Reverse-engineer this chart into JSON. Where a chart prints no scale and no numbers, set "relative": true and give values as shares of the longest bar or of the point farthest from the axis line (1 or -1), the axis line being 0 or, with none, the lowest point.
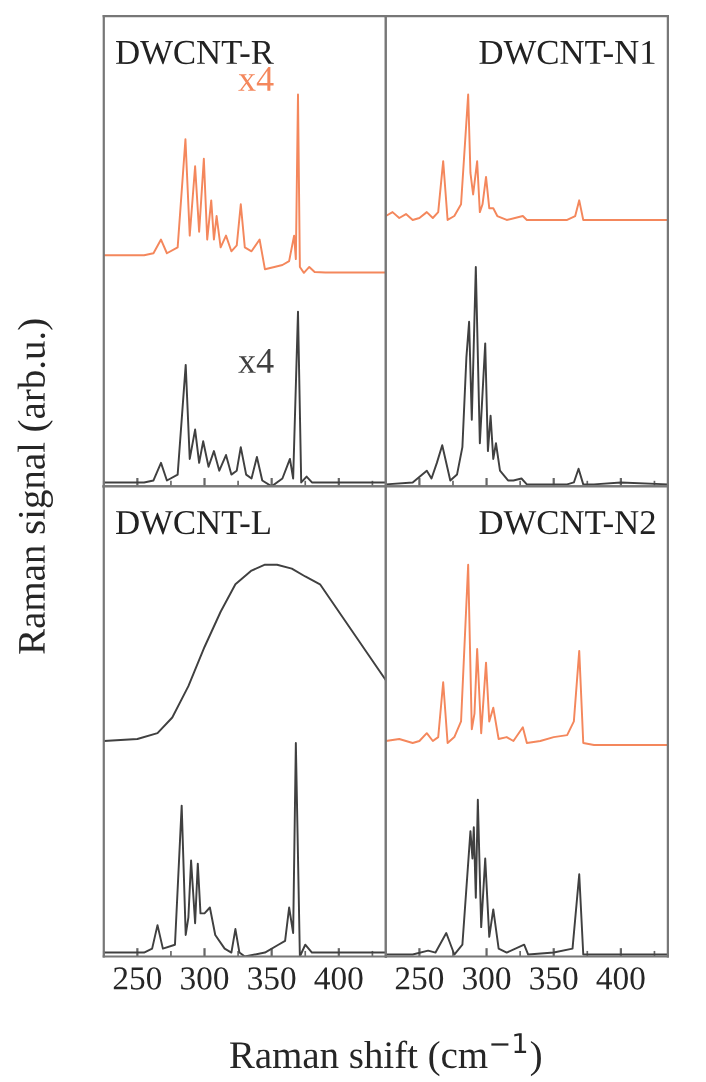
{
  "chart_data": [
    {
      "type": "line",
      "title": "DWCNT-R",
      "ylabel": "Raman signal (arb.u.)",
      "relative": true,
      "xlim": [
        225,
        435
      ],
      "xticks": [
        250,
        300,
        350,
        400
      ],
      "tick_labels": false,
      "grid": false,
      "legend": false,
      "annotations": [
        "x4",
        "x4"
      ],
      "series": [
        {
          "color": "#f4875c",
          "x": [
            225,
            255,
            262,
            267.6,
            272,
            280,
            285.8,
            289,
            293,
            296,
            299.5,
            302,
            305,
            307,
            309,
            312,
            316,
            320,
            324,
            327,
            330,
            335,
            341,
            342,
            345,
            352,
            358,
            363,
            366.7,
            368,
            369.6,
            371,
            374,
            378,
            382,
            390,
            410,
            435
          ],
          "values": [
            0.59,
            0.59,
            0.595,
            0.63,
            0.595,
            0.61,
            0.886,
            0.64,
            0.817,
            0.65,
            0.836,
            0.63,
            0.73,
            0.63,
            0.69,
            0.61,
            0.64,
            0.6,
            0.615,
            0.72,
            0.61,
            0.6,
            0.63,
            null,
            0.554,
            0.56,
            0.565,
            0.575,
            0.64,
            0.58,
            1.0,
            0.56,
            0.545,
            0.56,
            0.547,
            0.546,
            0.546,
            0.546
          ]
        },
        {
          "color": "#404040",
          "x": [
            225,
            255,
            262,
            267.6,
            272,
            280,
            286,
            289,
            293,
            296,
            299,
            303,
            307,
            311,
            316,
            320,
            324,
            327,
            331,
            335,
            339,
            343,
            350,
            358,
            363.6,
            366,
            369.6,
            372,
            376,
            380,
            400,
            435
          ],
          "values": [
            0.01,
            0.01,
            0.015,
            0.06,
            0.015,
            0.03,
            0.31,
            0.07,
            0.145,
            0.06,
            0.115,
            0.05,
            0.09,
            0.04,
            0.08,
            0.03,
            0.04,
            0.1,
            0.03,
            0.02,
            0.075,
            0.015,
            0.0,
            0.02,
            0.07,
            0.02,
            0.446,
            0.01,
            0.025,
            0.01,
            0.01,
            0.01
          ]
        }
      ]
    },
    {
      "type": "line",
      "title": "DWCNT-N1",
      "relative": true,
      "xlim": [
        225,
        435
      ],
      "xticks": [
        250,
        300,
        350,
        400
      ],
      "tick_labels": false,
      "grid": false,
      "legend": false,
      "series": [
        {
          "color": "#f4875c",
          "x": [
            225,
            230,
            235,
            240,
            245,
            250,
            255.5,
            260,
            264,
            267.7,
            271,
            276,
            281,
            286.3,
            288,
            290,
            293,
            295,
            297,
            299.6,
            302,
            305,
            308,
            315,
            327,
            330,
            360,
            366,
            369,
            372,
            380,
            435
          ],
          "values": [
            0.69,
            0.7,
            0.685,
            0.695,
            0.68,
            0.685,
            0.7,
            0.685,
            0.7,
            0.83,
            0.68,
            0.69,
            0.72,
            1.0,
            0.8,
            0.745,
            0.83,
            0.7,
            0.72,
            0.79,
            0.71,
            0.71,
            0.69,
            0.68,
            0.69,
            0.68,
            0.68,
            0.69,
            0.73,
            0.68,
            0.68,
            0.68
          ]
        },
        {
          "color": "#404040",
          "x": [
            225,
            245,
            255.5,
            259,
            263,
            267,
            273,
            278,
            282,
            285,
            287,
            289,
            292,
            295,
            299,
            301,
            303,
            305,
            307,
            310,
            316,
            320,
            326,
            330,
            360,
            365,
            368.5,
            372,
            380,
            400,
            435
          ],
          "values": [
            0.005,
            0.01,
            0.04,
            0.02,
            0.06,
            0.105,
            0.015,
            0.03,
            0.1,
            0.33,
            0.42,
            0.17,
            0.56,
            0.11,
            0.365,
            0.09,
            0.18,
            0.07,
            0.11,
            0.04,
            0.015,
            0.015,
            0.02,
            0.005,
            0.005,
            0.01,
            0.045,
            0.005,
            0.005,
            0.01,
            0.005
          ]
        }
      ]
    },
    {
      "type": "line",
      "title": "DWCNT-L",
      "xlabel": "Raman shift (cm$^{−1}$)",
      "relative": true,
      "xlim": [
        225,
        435
      ],
      "xticks": [
        250,
        300,
        350,
        400
      ],
      "tick_labels": "x",
      "grid": false,
      "legend": false,
      "series": [
        {
          "color": "#404040",
          "x": [
            225,
            250,
            265,
            276,
            288,
            300,
            312,
            323,
            335,
            345,
            354,
            365,
            375,
            386,
            398,
            410,
            422,
            435
          ],
          "values": [
            0.55,
            0.555,
            0.57,
            0.61,
            0.69,
            0.79,
            0.88,
            0.95,
            0.985,
            1.0,
            1.0,
            0.99,
            0.97,
            0.95,
            0.89,
            0.83,
            0.77,
            0.705
          ]
        },
        {
          "color": "#404040",
          "x": [
            225,
            255,
            261,
            265,
            269,
            278,
            283,
            286,
            288,
            290,
            293,
            295,
            297,
            300,
            304,
            308,
            315,
            320,
            323,
            326,
            330,
            345,
            355,
            360,
            363,
            366,
            368,
            371,
            375,
            380,
            400,
            435
          ],
          "values": [
            0.01,
            0.01,
            0.02,
            0.08,
            0.02,
            0.03,
            0.385,
            0.055,
            0.1,
            0.245,
            0.085,
            0.237,
            0.11,
            0.11,
            0.125,
            0.055,
            0.02,
            0.01,
            0.07,
            0.01,
            0.0,
            0.01,
            0.03,
            0.04,
            0.125,
            0.06,
            0.545,
            0.0,
            0.03,
            0.01,
            0.01,
            0.01
          ]
        }
      ]
    },
    {
      "type": "line",
      "title": "DWCNT-N2",
      "relative": true,
      "xlim": [
        225,
        435
      ],
      "xticks": [
        250,
        300,
        350,
        400
      ],
      "tick_labels": "x",
      "grid": false,
      "legend": false,
      "series": [
        {
          "color": "#f4875c",
          "x": [
            225,
            235,
            245,
            250,
            255.5,
            260,
            264,
            267.7,
            271,
            276,
            281,
            286.3,
            289,
            291,
            293,
            296,
            299.6,
            302,
            305,
            309,
            315,
            320,
            327,
            330,
            340,
            350,
            360,
            365,
            369,
            372,
            380,
            435
          ],
          "values": [
            0.55,
            0.555,
            0.545,
            0.55,
            0.57,
            0.55,
            0.56,
            0.7,
            0.545,
            0.56,
            0.6,
            1.0,
            0.58,
            0.62,
            0.785,
            0.57,
            0.75,
            0.6,
            0.635,
            0.555,
            0.56,
            0.55,
            0.585,
            0.545,
            0.55,
            0.56,
            0.565,
            0.6,
            0.78,
            0.545,
            0.54,
            0.54
          ]
        },
        {
          "color": "#404040",
          "x": [
            225,
            245,
            256.5,
            262,
            270,
            276,
            282,
            288,
            289.5,
            290.5,
            292,
            293.5,
            296,
            299,
            302,
            305,
            309,
            315,
            328,
            331,
            350,
            364,
            369,
            372,
            380,
            435
          ],
          "values": [
            0.005,
            0.005,
            0.015,
            0.01,
            0.06,
            0.005,
            0.03,
            0.32,
            0.25,
            0.33,
            0.15,
            0.4,
            0.075,
            0.25,
            0.05,
            0.12,
            0.02,
            0.01,
            0.03,
            0.005,
            0.01,
            0.02,
            0.21,
            0.005,
            0.005,
            0.005
          ]
        }
      ]
    }
  ]
}
